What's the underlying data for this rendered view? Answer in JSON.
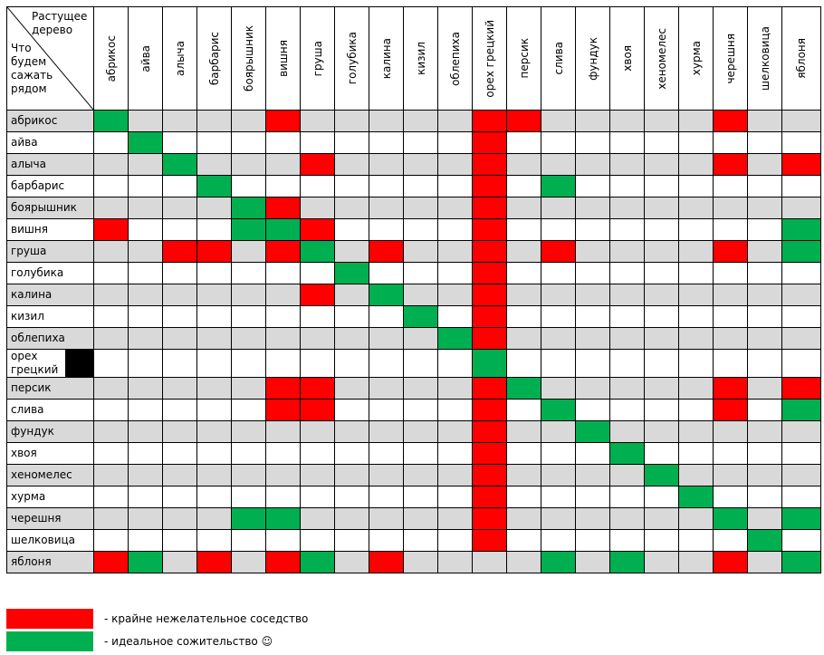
{
  "header": {
    "corner_top": "Растущее дерево",
    "corner_left": "Что будем сажать рядом"
  },
  "columns": [
    "абрикос",
    "айва",
    "алыча",
    "барбарис",
    "боярышник",
    "вишня",
    "груша",
    "голубика",
    "калина",
    "кизил",
    "облепиха",
    "орех грецкий",
    "персик",
    "слива",
    "фундук",
    "хвоя",
    "хеномелес",
    "хурма",
    "черешня",
    "шелковица",
    "яблоня"
  ],
  "rows": [
    {
      "label": "абрикос",
      "cells": [
        "#00b050",
        null,
        null,
        null,
        null,
        "#ff0000",
        null,
        null,
        null,
        null,
        null,
        "#ff0000",
        "#ff0000",
        null,
        null,
        null,
        null,
        null,
        "#ff0000",
        null,
        null
      ]
    },
    {
      "label": "айва",
      "cells": [
        null,
        "#00b050",
        null,
        null,
        null,
        null,
        null,
        null,
        null,
        null,
        null,
        "#ff0000",
        null,
        null,
        null,
        null,
        null,
        null,
        null,
        null,
        null
      ]
    },
    {
      "label": "алыча",
      "cells": [
        null,
        null,
        "#00b050",
        null,
        null,
        null,
        "#ff0000",
        null,
        null,
        null,
        null,
        "#ff0000",
        null,
        null,
        null,
        null,
        null,
        null,
        "#ff0000",
        null,
        "#ff0000"
      ]
    },
    {
      "label": "барбарис",
      "cells": [
        null,
        null,
        null,
        "#00b050",
        null,
        null,
        null,
        null,
        null,
        null,
        null,
        "#ff0000",
        null,
        "#00b050",
        null,
        null,
        null,
        null,
        null,
        null,
        null
      ]
    },
    {
      "label": "боярышник",
      "cells": [
        null,
        null,
        null,
        null,
        "#00b050",
        "#ff0000",
        null,
        null,
        null,
        null,
        null,
        "#ff0000",
        null,
        null,
        null,
        null,
        null,
        null,
        null,
        null,
        null
      ]
    },
    {
      "label": "вишня",
      "cells": [
        "#ff0000",
        null,
        null,
        null,
        "#00b050",
        "#00b050",
        "#ff0000",
        null,
        null,
        null,
        null,
        "#ff0000",
        null,
        null,
        null,
        null,
        null,
        null,
        null,
        null,
        "#00b050"
      ]
    },
    {
      "label": "груша",
      "cells": [
        null,
        null,
        "#ff0000",
        "#ff0000",
        null,
        "#ff0000",
        "#00b050",
        null,
        "#ff0000",
        null,
        null,
        "#ff0000",
        null,
        "#ff0000",
        null,
        null,
        null,
        null,
        "#ff0000",
        null,
        "#00b050"
      ]
    },
    {
      "label": "голубика",
      "cells": [
        null,
        null,
        null,
        null,
        null,
        null,
        null,
        "#00b050",
        null,
        null,
        null,
        "#ff0000",
        null,
        null,
        null,
        null,
        null,
        null,
        null,
        null,
        null
      ]
    },
    {
      "label": "калина",
      "cells": [
        null,
        null,
        null,
        null,
        null,
        null,
        "#ff0000",
        null,
        "#00b050",
        null,
        null,
        "#ff0000",
        null,
        null,
        null,
        null,
        null,
        null,
        null,
        null,
        null
      ]
    },
    {
      "label": "кизил",
      "cells": [
        null,
        null,
        null,
        null,
        null,
        null,
        null,
        null,
        null,
        "#00b050",
        null,
        "#ff0000",
        null,
        null,
        null,
        null,
        null,
        null,
        null,
        null,
        null
      ]
    },
    {
      "label": "облепиха",
      "cells": [
        null,
        null,
        null,
        null,
        null,
        null,
        null,
        null,
        null,
        null,
        "#00b050",
        "#ff0000",
        null,
        null,
        null,
        null,
        null,
        null,
        null,
        null,
        null
      ]
    },
    {
      "label": "орех грецкий",
      "cells": [
        null,
        null,
        null,
        null,
        null,
        null,
        null,
        null,
        null,
        null,
        null,
        "#00b050",
        null,
        null,
        null,
        null,
        null,
        null,
        null,
        null,
        null
      ]
    },
    {
      "label": "персик",
      "cells": [
        null,
        null,
        null,
        null,
        null,
        "#ff0000",
        "#ff0000",
        null,
        null,
        null,
        null,
        "#ff0000",
        "#00b050",
        null,
        null,
        null,
        null,
        null,
        "#ff0000",
        null,
        "#ff0000"
      ]
    },
    {
      "label": "слива",
      "cells": [
        null,
        null,
        null,
        null,
        null,
        "#ff0000",
        "#ff0000",
        null,
        null,
        null,
        null,
        "#ff0000",
        null,
        "#00b050",
        null,
        null,
        null,
        null,
        "#ff0000",
        null,
        "#00b050"
      ]
    },
    {
      "label": "фундук",
      "cells": [
        null,
        null,
        null,
        null,
        null,
        null,
        null,
        null,
        null,
        null,
        null,
        "#ff0000",
        null,
        null,
        "#00b050",
        null,
        null,
        null,
        null,
        null,
        null
      ]
    },
    {
      "label": "хвоя",
      "cells": [
        null,
        null,
        null,
        null,
        null,
        null,
        null,
        null,
        null,
        null,
        null,
        "#ff0000",
        null,
        null,
        null,
        "#00b050",
        null,
        null,
        null,
        null,
        null
      ]
    },
    {
      "label": "хеномелес",
      "cells": [
        null,
        null,
        null,
        null,
        null,
        null,
        null,
        null,
        null,
        null,
        null,
        "#ff0000",
        null,
        null,
        null,
        null,
        "#00b050",
        null,
        null,
        null,
        null
      ]
    },
    {
      "label": "хурма",
      "cells": [
        null,
        null,
        null,
        null,
        null,
        null,
        null,
        null,
        null,
        null,
        null,
        "#ff0000",
        null,
        null,
        null,
        null,
        null,
        "#00b050",
        null,
        null,
        null
      ]
    },
    {
      "label": "черешня",
      "cells": [
        null,
        null,
        null,
        null,
        "#00b050",
        "#00b050",
        null,
        null,
        null,
        null,
        null,
        "#ff0000",
        null,
        null,
        null,
        null,
        null,
        null,
        "#00b050",
        null,
        "#00b050"
      ]
    },
    {
      "label": "шелковица",
      "cells": [
        null,
        null,
        null,
        null,
        null,
        null,
        null,
        null,
        null,
        null,
        null,
        "#ff0000",
        null,
        null,
        null,
        null,
        null,
        null,
        null,
        "#00b050",
        null
      ]
    },
    {
      "label": "яблоня",
      "cells": [
        "#ff0000",
        "#00b050",
        null,
        "#ff0000",
        null,
        "#ff0000",
        "#00b050",
        null,
        "#ff0000",
        null,
        null,
        null,
        null,
        "#00b050",
        null,
        "#00b050",
        null,
        null,
        "#ff0000",
        null,
        "#00b050"
      ]
    }
  ],
  "legend": [
    {
      "color": "#ff0000",
      "label": "- крайне нежелательное соседство"
    },
    {
      "color": "#00b050",
      "label": "- идеальное сожительство ☺"
    }
  ]
}
